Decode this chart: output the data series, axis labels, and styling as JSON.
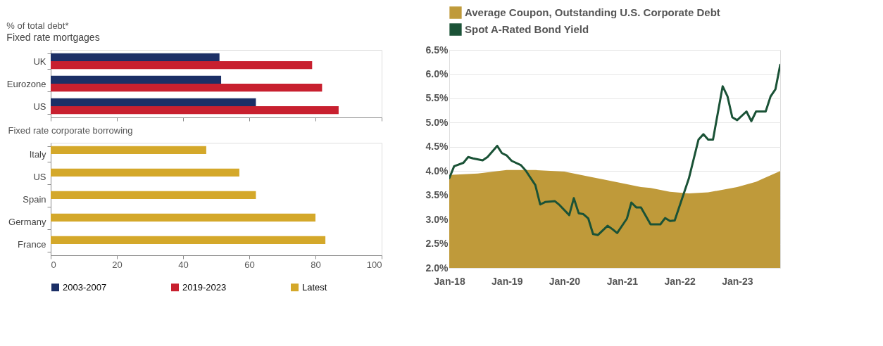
{
  "chart_data": [
    {
      "type": "bar",
      "orientation": "horizontal",
      "title": "% of total debt*",
      "subtitle": "Fixed rate mortgages",
      "categories": [
        "UK",
        "Eurozone",
        "US"
      ],
      "series": [
        {
          "name": "2003-2007",
          "color": "#1b2f66",
          "values": [
            51,
            51.5,
            62
          ]
        },
        {
          "name": "2019-2023",
          "color": "#c8202f",
          "values": [
            79,
            82,
            87
          ]
        }
      ],
      "xlim": [
        0,
        100
      ],
      "xticks": [
        0,
        20,
        40,
        60,
        80,
        100
      ],
      "tick_labels": "y",
      "grid": false,
      "legend": "bottom"
    },
    {
      "type": "bar",
      "orientation": "horizontal",
      "title": "Fixed rate corporate borrowing",
      "categories": [
        "Italy",
        "US",
        "Spain",
        "Germany",
        "France"
      ],
      "series": [
        {
          "name": "Latest",
          "color": "#d4a82a",
          "values": [
            47,
            57,
            62,
            80,
            83
          ]
        }
      ],
      "xlim": [
        0,
        100
      ],
      "xticks": [
        0,
        20,
        40,
        60,
        80,
        100
      ],
      "grid": false,
      "legend": "bottom"
    },
    {
      "type": "area",
      "series": [
        {
          "name": "Average Coupon, Outstanding U.S. Corporate Debt",
          "color": "#bf9a3a",
          "type": "area",
          "x": [
            "2018-01",
            "2018-07",
            "2019-01",
            "2019-07",
            "2020-01",
            "2020-07",
            "2021-01",
            "2021-05",
            "2021-07",
            "2021-11",
            "2022-03",
            "2022-07",
            "2023-01",
            "2023-05",
            "2023-10"
          ],
          "values": [
            3.92,
            3.95,
            4.02,
            4.02,
            3.99,
            3.87,
            3.75,
            3.67,
            3.65,
            3.57,
            3.54,
            3.56,
            3.67,
            3.78,
            4.0
          ]
        },
        {
          "name": "Spot A-Rated Bond Yield",
          "color": "#1a5236",
          "type": "line",
          "x": [
            "2018-01",
            "2018-02",
            "2018-04",
            "2018-05",
            "2018-06",
            "2018-08",
            "2018-09",
            "2018-11",
            "2018-12",
            "2019-01",
            "2019-02",
            "2019-04",
            "2019-05",
            "2019-07",
            "2019-08",
            "2019-09",
            "2019-11",
            "2019-12",
            "2020-02",
            "2020-03",
            "2020-04",
            "2020-05",
            "2020-06",
            "2020-07",
            "2020-08",
            "2020-10",
            "2020-11",
            "2020-12",
            "2021-02",
            "2021-03",
            "2021-04",
            "2021-05",
            "2021-07",
            "2021-09",
            "2021-10",
            "2021-11",
            "2021-12",
            "2022-03",
            "2022-05",
            "2022-06",
            "2022-07",
            "2022-08",
            "2022-10",
            "2022-11",
            "2022-12",
            "2023-01",
            "2023-03",
            "2023-04",
            "2023-05",
            "2023-07",
            "2023-08",
            "2023-09",
            "2023-10"
          ],
          "values": [
            3.85,
            4.1,
            4.17,
            4.29,
            4.26,
            4.22,
            4.29,
            4.52,
            4.37,
            4.32,
            4.21,
            4.12,
            4.01,
            3.71,
            3.31,
            3.36,
            3.38,
            3.3,
            3.09,
            3.44,
            3.13,
            3.11,
            3.02,
            2.7,
            2.68,
            2.87,
            2.8,
            2.72,
            3.02,
            3.35,
            3.25,
            3.25,
            2.9,
            2.9,
            3.03,
            2.97,
            2.98,
            3.85,
            4.65,
            4.76,
            4.65,
            4.65,
            5.75,
            5.54,
            5.11,
            5.05,
            5.23,
            5.03,
            5.23,
            5.23,
            5.54,
            5.69,
            6.19
          ]
        }
      ],
      "xlim": [
        "2018-01",
        "2023-10"
      ],
      "xticks": [
        {
          "value": "2018-01",
          "label": "Jan-18"
        },
        {
          "value": "2019-01",
          "label": "Jan-19"
        },
        {
          "value": "2020-01",
          "label": "Jan-20"
        },
        {
          "value": "2021-01",
          "label": "Jan-21"
        },
        {
          "value": "2022-01",
          "label": "Jan-22"
        },
        {
          "value": "2023-01",
          "label": "Jan-23"
        }
      ],
      "ylim": [
        2.0,
        6.5
      ],
      "yticks": [
        {
          "value": 2.0,
          "label": "2.0%"
        },
        {
          "value": 2.5,
          "label": "2.5%"
        },
        {
          "value": 3.0,
          "label": "3.0%"
        },
        {
          "value": 3.5,
          "label": "3.5%"
        },
        {
          "value": 4.0,
          "label": "4.0%"
        },
        {
          "value": 4.5,
          "label": "4.5%"
        },
        {
          "value": 5.0,
          "label": "5.0%"
        },
        {
          "value": 5.5,
          "label": "5.5%"
        },
        {
          "value": 6.0,
          "label": "6.0%"
        },
        {
          "value": 6.5,
          "label": "6.5%"
        }
      ],
      "grid": "y",
      "legend": "top"
    }
  ]
}
